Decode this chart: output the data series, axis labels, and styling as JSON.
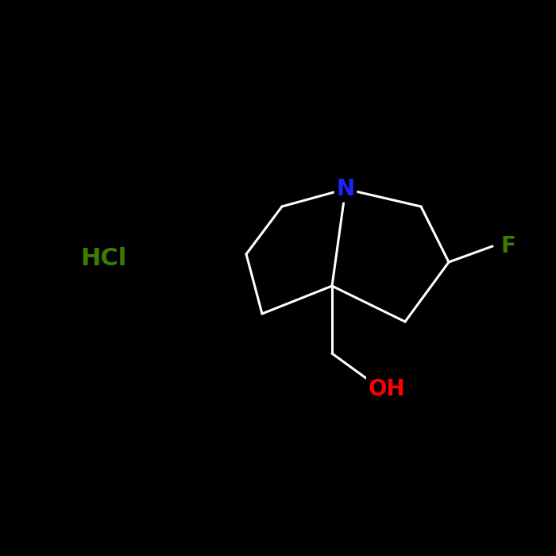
{
  "background_color": "#000000",
  "bond_color": "#ffffff",
  "bond_lw": 2.2,
  "N_label": "N",
  "N_color": "#2222ff",
  "F_label": "F",
  "F_color": "#3a7d00",
  "OH_label": "OH",
  "OH_color": "#ff0000",
  "HCl_label": "HCl",
  "HCl_color": "#3a7d00",
  "font_size": 20,
  "hcl_font_size": 22
}
